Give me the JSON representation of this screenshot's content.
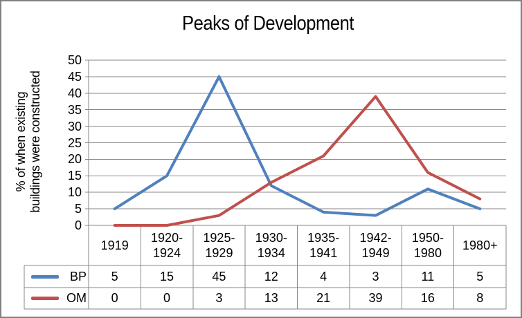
{
  "window": {
    "background": "#ffffff",
    "border_color": "#808080"
  },
  "chart_data": {
    "type": "line",
    "title": "Peaks of Development",
    "ylabel": "% of when existing buildings were constructed",
    "ylabel_display": [
      "% of when existing",
      "buildings were constructed"
    ],
    "xlabel": "",
    "categories": [
      "1919",
      "1920-1924",
      "1925-1929",
      "1930-1934",
      "1935-1941",
      "1942-1949",
      "1950-1980",
      "1980+"
    ],
    "category_display": [
      [
        "1919"
      ],
      [
        "1920-",
        "1924"
      ],
      [
        "1925-",
        "1929"
      ],
      [
        "1930-",
        "1934"
      ],
      [
        "1935-",
        "1941"
      ],
      [
        "1942-",
        "1949"
      ],
      [
        "1950-",
        "1980"
      ],
      [
        "1980+"
      ]
    ],
    "series": [
      {
        "name": "BP",
        "color": "#4F81BD",
        "values": [
          5,
          15,
          45,
          12,
          4,
          3,
          11,
          5
        ]
      },
      {
        "name": "OM",
        "color": "#C0504D",
        "values": [
          0,
          0,
          3,
          13,
          21,
          39,
          16,
          8
        ]
      }
    ],
    "ylim": [
      0,
      50
    ],
    "yticks": [
      0,
      5,
      10,
      15,
      20,
      25,
      30,
      35,
      40,
      45,
      50
    ],
    "grid": true,
    "legend_position": "data-table-left",
    "colors": {
      "gridline": "#878787",
      "axis": "#878787",
      "table_border": "#878787",
      "text": "#000000"
    }
  }
}
